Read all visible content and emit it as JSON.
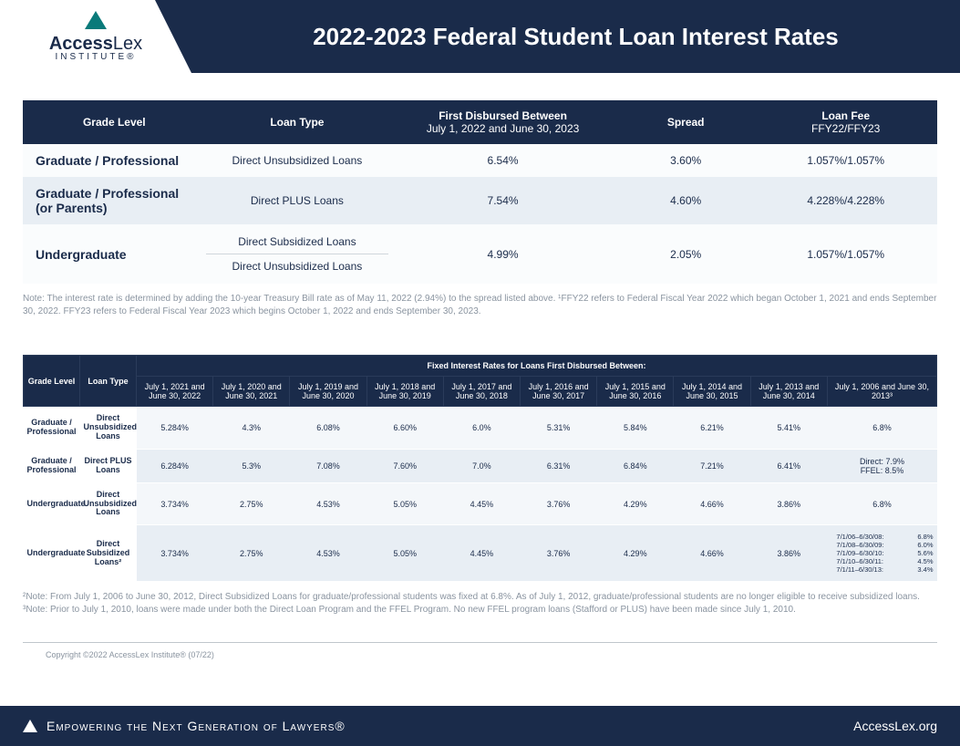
{
  "brand": {
    "name_a": "Access",
    "name_b": "Lex",
    "sub": "INSTITUTE®"
  },
  "title": "2022-2023 Federal Student Loan Interest Rates",
  "t1": {
    "headers": {
      "grade": "Grade Level",
      "loan": "Loan Type",
      "disbursed_top": "First Disbursed Between",
      "disbursed_sub": "July 1, 2022 and June 30, 2023",
      "spread": "Spread",
      "fee_top": "Loan Fee",
      "fee_sub": "FFY22/FFY23"
    },
    "rows": [
      {
        "grade": "Graduate / Professional",
        "loan": "Direct Unsubsidized Loans",
        "rate": "6.54%",
        "spread": "3.60%",
        "fee": "1.057%/1.057%"
      },
      {
        "grade": "Graduate / Professional (or Parents)",
        "loan": "Direct PLUS Loans",
        "rate": "7.54%",
        "spread": "4.60%",
        "fee": "4.228%/4.228%"
      },
      {
        "grade": "Undergraduate",
        "loan_a": "Direct Subsidized Loans",
        "loan_b": "Direct Unsubsidized Loans",
        "rate": "4.99%",
        "spread": "2.05%",
        "fee": "1.057%/1.057%"
      }
    ]
  },
  "note1": "Note: The interest rate is determined by adding the 10-year Treasury Bill rate as of May 11, 2022 (2.94%) to the spread listed above. ¹FFY22 refers to Federal Fiscal Year 2022 which began October 1, 2021 and ends September 30, 2022. FFY23 refers to Federal Fiscal Year 2023 which begins October 1, 2022 and ends September 30, 2023.",
  "t2": {
    "corner_grade": "Grade Level",
    "corner_loan": "Loan Type",
    "span": "Fixed Interest Rates for Loans First Disbursed Between:",
    "cols": [
      "July 1, 2021 and June 30, 2022",
      "July 1, 2020 and June 30, 2021",
      "July 1, 2019 and June 30, 2020",
      "July 1, 2018 and June 30, 2019",
      "July 1, 2017 and June 30, 2018",
      "July 1, 2016 and June 30, 2017",
      "July 1, 2015 and June 30, 2016",
      "July 1, 2014 and June 30, 2015",
      "July 1, 2013 and June 30, 2014",
      "July 1, 2006 and June 30, 2013³"
    ],
    "rows": [
      {
        "grade": "Graduate / Professional",
        "loan": "Direct Unsubsidized Loans",
        "v": [
          "5.284%",
          "4.3%",
          "6.08%",
          "6.60%",
          "6.0%",
          "5.31%",
          "5.84%",
          "6.21%",
          "5.41%",
          "6.8%"
        ]
      },
      {
        "grade": "Graduate / Professional",
        "loan": "Direct PLUS Loans",
        "v": [
          "6.284%",
          "5.3%",
          "7.08%",
          "7.60%",
          "7.0%",
          "6.31%",
          "6.84%",
          "7.21%",
          "6.41%",
          "Direct: 7.9%\nFFEL: 8.5%"
        ]
      },
      {
        "grade": "Undergraduate",
        "loan": "Direct Unsubsidized Loans",
        "v": [
          "3.734%",
          "2.75%",
          "4.53%",
          "5.05%",
          "4.45%",
          "3.76%",
          "4.29%",
          "4.66%",
          "3.86%",
          "6.8%"
        ]
      },
      {
        "grade": "Undergraduate",
        "loan": "Direct Subsidized Loans²",
        "v": [
          "3.734%",
          "2.75%",
          "4.53%",
          "5.05%",
          "4.45%",
          "3.76%",
          "4.29%",
          "4.66%",
          "3.86%",
          ""
        ]
      }
    ],
    "row4_last": [
      [
        "7/1/06–6/30/08:",
        "6.8%"
      ],
      [
        "7/1/08–6/30/09:",
        "6.0%"
      ],
      [
        "7/1/09–6/30/10:",
        "5.6%"
      ],
      [
        "7/1/10–6/30/11:",
        "4.5%"
      ],
      [
        "7/1/11–6/30/13:",
        "3.4%"
      ]
    ]
  },
  "note2": "²Note: From July 1, 2006 to June 30, 2012, Direct Subsidized Loans for graduate/professional students was fixed at 6.8%. As of July 1, 2012, graduate/professional students are no longer eligible to receive subsidized loans. ³Note: Prior to July 1, 2010, loans were made under both the Direct Loan Program and the FFEL Program. No new FFEL program loans (Stafford or PLUS) have been made since July 1, 2010.",
  "copyright": "Copyright ©2022 AccessLex Institute® (07/22)",
  "footer": {
    "tagline": "Empowering the Next Generation of Lawyers®",
    "url": "AccessLex.org"
  }
}
